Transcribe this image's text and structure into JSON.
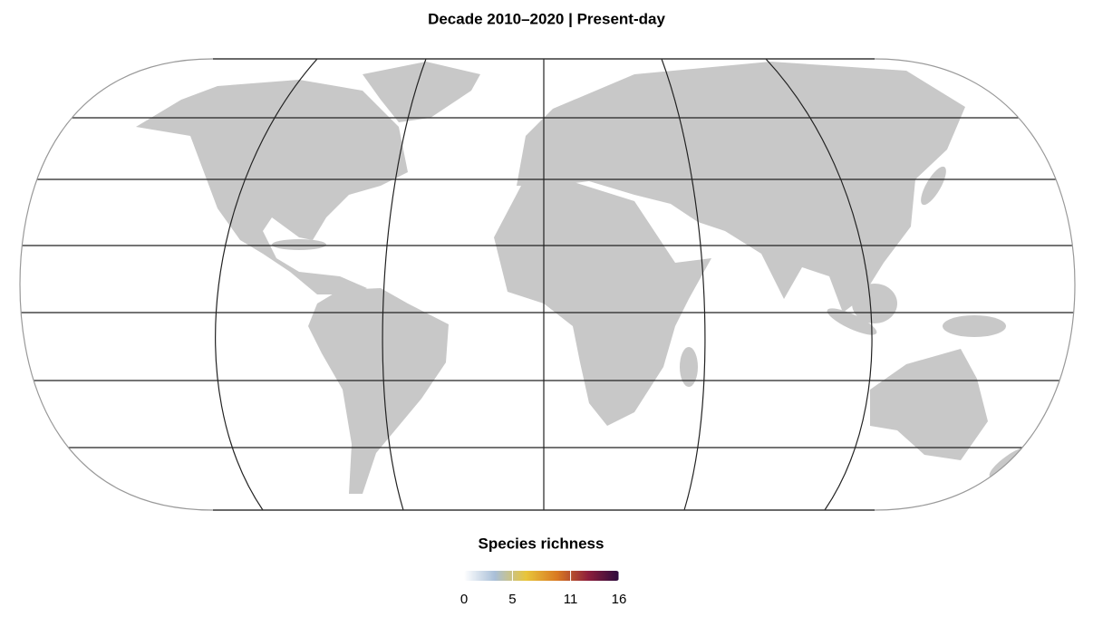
{
  "title": "Decade 2010–2020 | Present-day",
  "legend": {
    "title": "Species richness",
    "lim": [
      0,
      16
    ],
    "ticks": [
      0,
      5,
      11,
      16
    ],
    "colors": [
      "#ffffff",
      "#a9bfd8",
      "#e8c53a",
      "#d97a22",
      "#8e1f3c",
      "#2b0a3d"
    ]
  }
}
